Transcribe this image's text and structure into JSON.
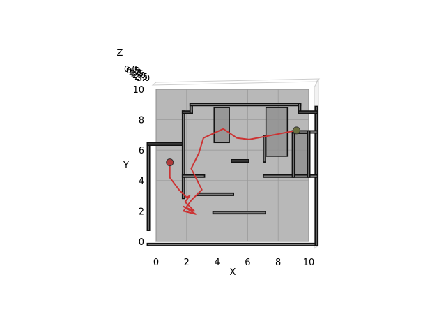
{
  "chart_data": {
    "type": "3d-line",
    "title": "",
    "xlabel": "X",
    "ylabel": "Y",
    "zlabel": "Z",
    "xlim": [
      0,
      10
    ],
    "ylim": [
      0,
      10
    ],
    "x_ticks": [
      "0",
      "2",
      "4",
      "6",
      "8",
      "10"
    ],
    "y_ticks": [
      "0",
      "2",
      "4",
      "6",
      "8",
      "10"
    ],
    "z_ticks": [
      "0.0",
      "0.5",
      "1.0",
      "1.5",
      "2.0",
      "2.5",
      "3.0"
    ],
    "grid": true,
    "floor_color": "#b8b8b8",
    "wall_color": "#111111",
    "path_color": "#cc3333",
    "start_color": "#b03a3a",
    "goal_color": "#6b7040",
    "walls": [
      [
        -0.5,
        -0.2,
        10.5,
        -0.2
      ],
      [
        10.5,
        -0.2,
        10.5,
        8.8
      ],
      [
        -0.5,
        0.8,
        -0.5,
        6.4
      ],
      [
        -0.5,
        6.4,
        1.8,
        6.4
      ],
      [
        1.8,
        2.9,
        1.8,
        8.5
      ],
      [
        1.8,
        8.5,
        2.3,
        8.5
      ],
      [
        2.3,
        8.5,
        2.3,
        9.0
      ],
      [
        2.3,
        9.0,
        9.4,
        9.0
      ],
      [
        9.4,
        9.0,
        9.4,
        8.5
      ],
      [
        9.4,
        8.5,
        10.5,
        8.5
      ],
      [
        3.8,
        1.9,
        7.1,
        1.9
      ],
      [
        2.8,
        3.1,
        5.0,
        3.1
      ],
      [
        1.8,
        4.3,
        3.1,
        4.3
      ],
      [
        7.1,
        4.3,
        10.5,
        4.3
      ],
      [
        5.0,
        5.3,
        6.0,
        5.3
      ],
      [
        7.1,
        5.3,
        7.1,
        6.9
      ],
      [
        9.0,
        4.3,
        9.0,
        7.2
      ],
      [
        9.0,
        7.2,
        10.5,
        7.2
      ],
      [
        10.0,
        4.3,
        10.0,
        7.2
      ]
    ],
    "blocks": [
      [
        3.8,
        6.5,
        4.8,
        8.8
      ],
      [
        7.2,
        5.6,
        8.6,
        8.8
      ],
      [
        9.1,
        4.4,
        9.9,
        7.1
      ]
    ],
    "path": {
      "x": [
        0.9,
        0.9,
        1.5,
        2.0,
        2.2,
        1.9,
        2.5,
        1.8,
        2.6,
        1.8,
        2.3,
        3.0,
        2.3,
        2.8,
        3.1,
        4.4,
        5.3,
        6.1,
        8.2,
        9.2
      ],
      "y": [
        5.2,
        4.2,
        3.4,
        2.9,
        3.0,
        2.6,
        2.0,
        2.3,
        1.8,
        2.0,
        2.7,
        3.4,
        4.8,
        5.8,
        6.8,
        7.4,
        6.8,
        6.7,
        7.1,
        7.3
      ]
    },
    "start": {
      "x": 0.9,
      "y": 5.2
    },
    "goal": {
      "x": 9.2,
      "y": 7.3
    }
  }
}
